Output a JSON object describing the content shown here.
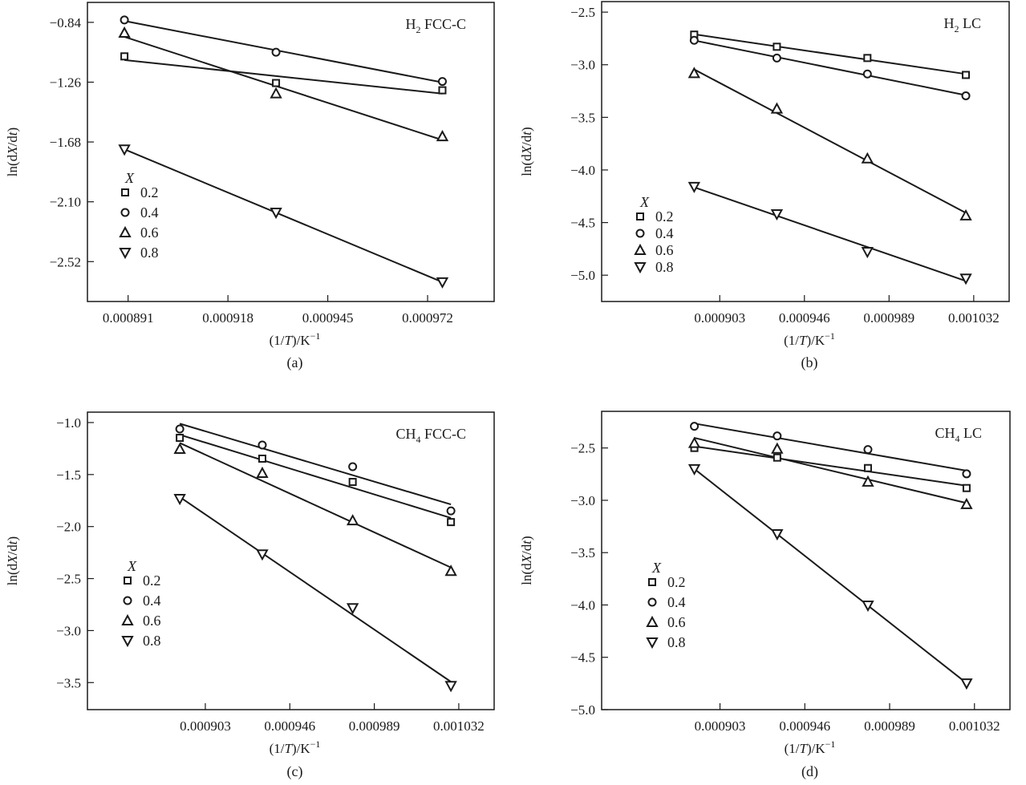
{
  "chart_data": [
    {
      "type": "scatter",
      "panel_caption": "(a)",
      "title": "H2 FCC-C",
      "title_main": "H",
      "title_sub": "2",
      "title_rest": " FCC-C",
      "xlabel": "(1/T)/K⁻¹",
      "ylabel": "ln(dX/dt)",
      "xticks": [
        0.000891,
        0.000918,
        0.000945,
        0.000972
      ],
      "xtick_labels": [
        "0.000891",
        "0.000918",
        "0.000945",
        "0.000972"
      ],
      "yticks": [
        -0.84,
        -1.26,
        -1.68,
        -2.1,
        -2.52
      ],
      "ytick_labels": [
        "−0.84",
        "−1.26",
        "−1.68",
        "−2.10",
        "−2.52"
      ],
      "xlim": [
        0.00088,
        0.00099
      ],
      "ylim": [
        -2.8,
        -0.7
      ],
      "legend_title": "X",
      "legend_position": "middle-left",
      "grid": false,
      "x": [
        0.00089,
        0.000931,
        0.000976
      ],
      "series": [
        {
          "name": "0.2",
          "marker": "square",
          "values": [
            -1.079,
            -1.266,
            -1.317
          ]
        },
        {
          "name": "0.4",
          "marker": "circle",
          "values": [
            -0.823,
            -1.05,
            -1.255
          ]
        },
        {
          "name": "0.6",
          "marker": "triangle-up",
          "values": [
            -0.914,
            -1.34,
            -1.641
          ]
        },
        {
          "name": "0.8",
          "marker": "triangle-down",
          "values": [
            -1.732,
            -2.175,
            -2.664
          ]
        }
      ]
    },
    {
      "type": "scatter",
      "panel_caption": "(b)",
      "title": "H2 LC",
      "title_main": "H",
      "title_sub": "2",
      "title_rest": " LC",
      "xlabel": "(1/T)/K⁻¹",
      "ylabel": "ln(dX/dt)",
      "xticks": [
        0.000903,
        0.000946,
        0.000989,
        0.001032
      ],
      "xtick_labels": [
        "0.000903",
        "0.000946",
        "0.000989",
        "0.001032"
      ],
      "yticks": [
        -2.5,
        -3.0,
        -3.5,
        -4.0,
        -4.5,
        -5.0
      ],
      "ytick_labels": [
        "−2.5",
        "−3.0",
        "−3.5",
        "−4.0",
        "−4.5",
        "−5.0"
      ],
      "xlim": [
        0.000843,
        0.00105
      ],
      "ylim": [
        -5.25,
        -2.4
      ],
      "legend_title": "X",
      "legend_position": "lower-left",
      "grid": false,
      "x": [
        0.00089,
        0.000932,
        0.000978,
        0.001028
      ],
      "series": [
        {
          "name": "0.2",
          "marker": "square",
          "values": [
            -2.714,
            -2.829,
            -2.936,
            -3.097
          ]
        },
        {
          "name": "0.4",
          "marker": "circle",
          "values": [
            -2.768,
            -2.936,
            -3.088,
            -3.295
          ]
        },
        {
          "name": "0.6",
          "marker": "triangle-up",
          "values": [
            -3.081,
            -3.418,
            -3.892,
            -4.434
          ]
        },
        {
          "name": "0.8",
          "marker": "triangle-down",
          "values": [
            -4.159,
            -4.419,
            -4.778,
            -5.031
          ]
        }
      ]
    },
    {
      "type": "scatter",
      "panel_caption": "(c)",
      "title": "CH4 FCC-C",
      "title_main": "CH",
      "title_sub": "4",
      "title_rest": " FCC-C",
      "xlabel": "(1/T)/K⁻¹",
      "ylabel": "ln(dX/dt)",
      "xticks": [
        0.000903,
        0.000946,
        0.000989,
        0.001032
      ],
      "xtick_labels": [
        "0.000903",
        "0.000946",
        "0.000989",
        "0.001032"
      ],
      "yticks": [
        -1.0,
        -1.5,
        -2.0,
        -2.5,
        -3.0,
        -3.5
      ],
      "ytick_labels": [
        "−1.0",
        "−1.5",
        "−2.0",
        "−2.5",
        "−3.0",
        "−3.5"
      ],
      "xlim": [
        0.000843,
        0.00105
      ],
      "ylim": [
        -3.76,
        -0.9
      ],
      "legend_title": "X",
      "legend_position": "lower-left",
      "grid": false,
      "x": [
        0.00089,
        0.000932,
        0.000978,
        0.001028
      ],
      "series": [
        {
          "name": "0.2",
          "marker": "square",
          "values": [
            -1.147,
            -1.347,
            -1.571,
            -1.957
          ]
        },
        {
          "name": "0.4",
          "marker": "circle",
          "values": [
            -1.062,
            -1.216,
            -1.424,
            -1.849
          ]
        },
        {
          "name": "0.6",
          "marker": "triangle-up",
          "values": [
            -1.255,
            -1.486,
            -1.942,
            -2.428
          ]
        },
        {
          "name": "0.8",
          "marker": "triangle-down",
          "values": [
            -1.733,
            -2.266,
            -2.783,
            -3.531
          ]
        }
      ]
    },
    {
      "type": "scatter",
      "panel_caption": "(d)",
      "title": "CH4 LC",
      "title_main": "CH",
      "title_sub": "4",
      "title_rest": " LC",
      "xlabel": "(1/T)/K⁻¹",
      "ylabel": "ln(dX/dt)",
      "xticks": [
        0.000903,
        0.000946,
        0.000989,
        0.001032
      ],
      "xtick_labels": [
        "0.000903",
        "0.000946",
        "0.000989",
        "0.001032"
      ],
      "yticks": [
        -2.5,
        -3.0,
        -3.5,
        -4.0,
        -4.5,
        -5.0
      ],
      "ytick_labels": [
        "−2.5",
        "−3.0",
        "−3.5",
        "−4.0",
        "−4.5",
        "−5.0"
      ],
      "xlim": [
        0.000843,
        0.00105
      ],
      "ylim": [
        -5.0,
        -2.15
      ],
      "legend_title": "X",
      "legend_position": "lower-left",
      "grid": false,
      "x": [
        0.00089,
        0.000932,
        0.000978,
        0.001028
      ],
      "series": [
        {
          "name": "0.2",
          "marker": "square",
          "values": [
            -2.5,
            -2.592,
            -2.692,
            -2.883
          ]
        },
        {
          "name": "0.4",
          "marker": "circle",
          "values": [
            -2.293,
            -2.385,
            -2.515,
            -2.747
          ]
        },
        {
          "name": "0.6",
          "marker": "triangle-up",
          "values": [
            -2.454,
            -2.508,
            -2.823,
            -3.038
          ]
        },
        {
          "name": "0.8",
          "marker": "triangle-down",
          "values": [
            -2.701,
            -3.322,
            -4.004,
            -4.748
          ]
        }
      ]
    }
  ]
}
